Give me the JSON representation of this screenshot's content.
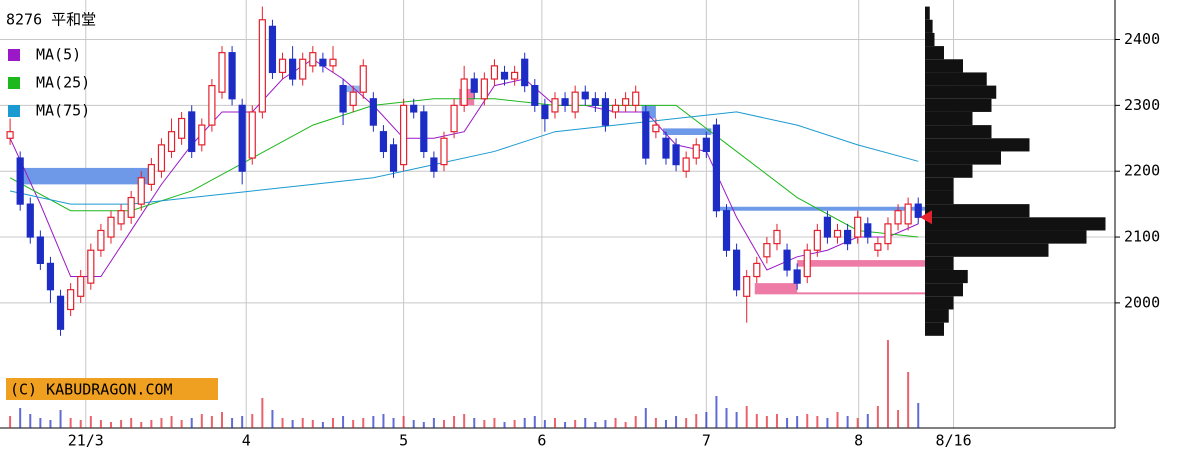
{
  "chart_data": {
    "type": "candlestick",
    "title": "8276 平和堂",
    "copyright": "(C) KABUDRAGON.COM",
    "x": [
      0,
      1,
      2,
      3,
      4,
      5,
      6,
      7,
      8,
      9,
      10,
      11,
      12,
      13,
      14,
      15,
      16,
      17,
      18,
      19,
      20,
      21,
      22,
      23,
      24,
      25,
      26,
      27,
      28,
      29,
      30,
      31,
      32,
      33,
      34,
      35,
      36,
      37,
      38,
      39,
      40,
      41,
      42,
      43,
      44,
      45,
      46,
      47,
      48,
      49,
      50,
      51,
      52,
      53,
      54,
      55,
      56,
      57,
      58,
      59,
      60,
      61,
      62,
      63,
      64,
      65,
      66,
      67,
      68,
      69,
      70,
      71,
      72,
      73,
      74,
      75,
      76,
      77,
      78,
      79,
      80,
      81,
      82,
      83,
      84,
      85,
      86,
      87,
      88,
      89,
      90
    ],
    "open": [
      2250,
      2220,
      2150,
      2100,
      2060,
      2010,
      1990,
      2010,
      2030,
      2080,
      2100,
      2120,
      2130,
      2150,
      2180,
      2200,
      2230,
      2250,
      2290,
      2240,
      2270,
      2320,
      2380,
      2300,
      2220,
      2290,
      2420,
      2350,
      2370,
      2340,
      2360,
      2370,
      2360,
      2330,
      2300,
      2320,
      2310,
      2260,
      2240,
      2210,
      2300,
      2290,
      2220,
      2210,
      2260,
      2300,
      2340,
      2310,
      2340,
      2350,
      2340,
      2370,
      2330,
      2300,
      2290,
      2310,
      2290,
      2320,
      2310,
      2310,
      2290,
      2300,
      2300,
      2290,
      2260,
      2250,
      2240,
      2200,
      2220,
      2250,
      2270,
      2140,
      2080,
      2010,
      2040,
      2070,
      2090,
      2080,
      2050,
      2040,
      2080,
      2130,
      2100,
      2110,
      2100,
      2120,
      2080,
      2090,
      2120,
      2120,
      2150
    ],
    "high": [
      2280,
      2230,
      2160,
      2110,
      2070,
      2020,
      2030,
      2050,
      2090,
      2120,
      2140,
      2150,
      2170,
      2200,
      2220,
      2250,
      2280,
      2290,
      2300,
      2280,
      2340,
      2390,
      2390,
      2310,
      2300,
      2450,
      2430,
      2380,
      2390,
      2380,
      2390,
      2380,
      2390,
      2340,
      2330,
      2370,
      2320,
      2270,
      2250,
      2310,
      2310,
      2300,
      2230,
      2260,
      2310,
      2360,
      2350,
      2350,
      2370,
      2360,
      2360,
      2380,
      2340,
      2310,
      2320,
      2320,
      2330,
      2330,
      2320,
      2320,
      2310,
      2320,
      2330,
      2300,
      2280,
      2260,
      2250,
      2230,
      2250,
      2260,
      2280,
      2150,
      2090,
      2050,
      2070,
      2100,
      2120,
      2090,
      2060,
      2090,
      2120,
      2140,
      2120,
      2120,
      2140,
      2130,
      2100,
      2130,
      2150,
      2160,
      2160
    ],
    "low": [
      2240,
      2140,
      2090,
      2050,
      2000,
      1950,
      1980,
      2000,
      2020,
      2070,
      2090,
      2110,
      2120,
      2140,
      2170,
      2190,
      2220,
      2240,
      2220,
      2230,
      2260,
      2310,
      2300,
      2180,
      2210,
      2280,
      2340,
      2340,
      2330,
      2330,
      2350,
      2350,
      2350,
      2270,
      2290,
      2310,
      2260,
      2220,
      2190,
      2200,
      2280,
      2220,
      2190,
      2200,
      2250,
      2290,
      2310,
      2300,
      2330,
      2330,
      2330,
      2320,
      2290,
      2260,
      2280,
      2290,
      2280,
      2300,
      2290,
      2260,
      2280,
      2290,
      2290,
      2210,
      2250,
      2210,
      2200,
      2190,
      2210,
      2220,
      2130,
      2070,
      2010,
      1970,
      2030,
      2060,
      2080,
      2040,
      2020,
      2030,
      2070,
      2090,
      2090,
      2080,
      2090,
      2090,
      2070,
      2080,
      2110,
      2110,
      2120
    ],
    "close": [
      2260,
      2150,
      2100,
      2060,
      2020,
      1960,
      2020,
      2040,
      2080,
      2110,
      2130,
      2140,
      2160,
      2190,
      2210,
      2240,
      2260,
      2280,
      2230,
      2270,
      2330,
      2380,
      2310,
      2200,
      2290,
      2430,
      2350,
      2370,
      2340,
      2370,
      2380,
      2360,
      2370,
      2290,
      2320,
      2360,
      2270,
      2230,
      2200,
      2300,
      2290,
      2230,
      2200,
      2250,
      2300,
      2340,
      2320,
      2340,
      2360,
      2340,
      2350,
      2330,
      2300,
      2280,
      2310,
      2300,
      2320,
      2310,
      2300,
      2270,
      2300,
      2310,
      2320,
      2220,
      2270,
      2220,
      2210,
      2220,
      2240,
      2230,
      2140,
      2080,
      2020,
      2040,
      2060,
      2090,
      2110,
      2050,
      2030,
      2080,
      2110,
      2100,
      2110,
      2090,
      2130,
      2100,
      2090,
      2120,
      2140,
      2150,
      2130
    ],
    "up_color": "#e4202c",
    "down_color": "#1c2cc4",
    "volume": {
      "values": [
        12,
        20,
        14,
        10,
        8,
        18,
        10,
        8,
        12,
        8,
        6,
        8,
        10,
        6,
        8,
        10,
        12,
        8,
        10,
        14,
        12,
        16,
        10,
        12,
        14,
        30,
        18,
        10,
        8,
        10,
        8,
        6,
        10,
        12,
        8,
        10,
        12,
        14,
        10,
        12,
        8,
        6,
        10,
        8,
        12,
        14,
        10,
        8,
        10,
        6,
        8,
        10,
        12,
        8,
        10,
        6,
        8,
        10,
        6,
        8,
        10,
        6,
        12,
        20,
        10,
        8,
        12,
        10,
        14,
        16,
        32,
        20,
        16,
        22,
        14,
        12,
        14,
        10,
        12,
        14,
        12,
        10,
        16,
        12,
        10,
        14,
        22,
        88,
        18,
        56,
        25
      ],
      "vlim": [
        0,
        160
      ]
    },
    "series": [
      {
        "name": "MA(5)",
        "color": "#9a18c8",
        "x": [
          0,
          3,
          6,
          9,
          12,
          15,
          18,
          21,
          24,
          27,
          30,
          33,
          36,
          39,
          42,
          45,
          48,
          51,
          54,
          57,
          60,
          63,
          66,
          69,
          72,
          75,
          78,
          81,
          84,
          87,
          90
        ],
        "values": [
          2250,
          2150,
          2040,
          2040,
          2110,
          2180,
          2240,
          2290,
          2290,
          2340,
          2370,
          2340,
          2300,
          2250,
          2250,
          2260,
          2330,
          2340,
          2300,
          2300,
          2290,
          2290,
          2240,
          2230,
          2130,
          2050,
          2070,
          2080,
          2100,
          2100,
          2120
        ]
      },
      {
        "name": "MA(25)",
        "color": "#1cb81c",
        "x": [
          0,
          6,
          12,
          18,
          24,
          30,
          36,
          42,
          48,
          54,
          60,
          66,
          72,
          78,
          84,
          90
        ],
        "values": [
          2190,
          2140,
          2140,
          2170,
          2220,
          2270,
          2300,
          2310,
          2310,
          2300,
          2300,
          2300,
          2230,
          2160,
          2110,
          2100
        ]
      },
      {
        "name": "MA(75)",
        "color": "#1a9ad0",
        "x": [
          0,
          6,
          12,
          18,
          24,
          30,
          36,
          42,
          48,
          54,
          60,
          66,
          72,
          78,
          84,
          90
        ],
        "values": [
          2170,
          2150,
          2150,
          2160,
          2170,
          2180,
          2190,
          2210,
          2230,
          2260,
          2270,
          2280,
          2290,
          2270,
          2240,
          2215
        ]
      }
    ],
    "profile": {
      "levels": [
        1960,
        1980,
        2000,
        2020,
        2040,
        2060,
        2080,
        2100,
        2120,
        2140,
        2160,
        2180,
        2200,
        2220,
        2240,
        2260,
        2280,
        2300,
        2320,
        2340,
        2360,
        2380,
        2400,
        2420,
        2440
      ],
      "values": [
        20,
        25,
        30,
        40,
        45,
        30,
        130,
        170,
        190,
        110,
        30,
        30,
        50,
        80,
        110,
        70,
        50,
        70,
        75,
        65,
        40,
        20,
        10,
        8,
        5
      ],
      "plim": [
        0,
        200
      ],
      "color": "#111111"
    },
    "zones": [
      {
        "x": [
          0.8,
          13.8
        ],
        "y": [
          2180,
          2205
        ],
        "color": "#6e98e8"
      },
      {
        "x": [
          33.3,
          34.7
        ],
        "y": [
          2320,
          2330
        ],
        "color": "#8fb4f0"
      },
      {
        "x": [
          44.5,
          46
        ],
        "y": [
          2300,
          2325
        ],
        "color": "#ee7aa6"
      },
      {
        "x": [
          62.6,
          64
        ],
        "y": [
          2280,
          2300
        ],
        "color": "#6e98e8"
      },
      {
        "x": [
          64.7,
          69.5
        ],
        "y": [
          2255,
          2265
        ],
        "color": "#6e98e8"
      },
      {
        "x": [
          70.2,
          91
        ],
        "y": [
          2140,
          2146
        ],
        "color": "#6e98e8"
      },
      {
        "x": [
          78,
          91
        ],
        "y": [
          2055,
          2065
        ],
        "color": "#ee7aa6"
      },
      {
        "x": [
          73.8,
          78
        ],
        "y": [
          2015,
          2030
        ],
        "color": "#ee7aa6"
      },
      {
        "x": [
          73.8,
          91
        ],
        "y": [
          2013,
          2016
        ],
        "color": "#ee7aa6"
      }
    ],
    "last_price": 2130,
    "marker_color": "#e4202c",
    "copyright_color": "#f0a020",
    "xlim": [
      -1,
      109.5
    ],
    "ylim": [
      1810,
      2460
    ],
    "yticks": [
      2000,
      2100,
      2200,
      2300,
      2400
    ],
    "xticks": [
      {
        "value": 7.5,
        "label": "21/3"
      },
      {
        "value": 23.4,
        "label": "4"
      },
      {
        "value": 39,
        "label": "5"
      },
      {
        "value": 52.7,
        "label": "6"
      },
      {
        "value": 69,
        "label": "7"
      },
      {
        "value": 84.1,
        "label": "8"
      },
      {
        "value": 93.5,
        "label": "8/16"
      }
    ],
    "grid": true
  }
}
